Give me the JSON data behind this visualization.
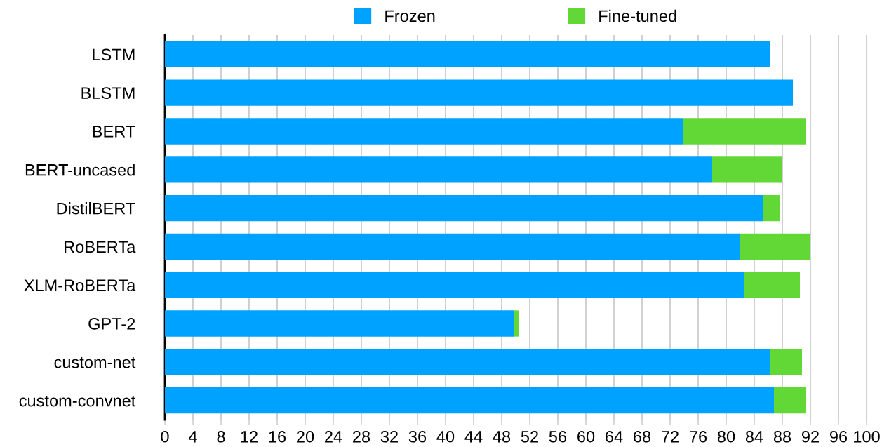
{
  "chart_data": {
    "type": "bar",
    "orientation": "horizontal",
    "stacked": true,
    "categories": [
      "LSTM",
      "BLSTM",
      "BERT",
      "BERT-uncased",
      "DistilBERT",
      "RoBERTa",
      "XLM-RoBERTa",
      "GPT-2",
      "custom-net",
      "custom-convnet"
    ],
    "series": [
      {
        "name": "Frozen",
        "color": "#00a2ff",
        "values": [
          86.2,
          89.5,
          73.8,
          78.0,
          85.2,
          82.0,
          82.6,
          49.8,
          86.3,
          86.8
        ]
      },
      {
        "name": "Fine-tuned",
        "color": "#61d836",
        "values": [
          null,
          null,
          17.5,
          9.9,
          2.4,
          9.9,
          7.9,
          0.7,
          4.5,
          4.6
        ]
      }
    ],
    "xlim": [
      0,
      100
    ],
    "xticks": [
      0,
      4,
      8,
      12,
      16,
      20,
      24,
      28,
      32,
      36,
      40,
      44,
      48,
      52,
      56,
      60,
      64,
      68,
      72,
      76,
      80,
      84,
      88,
      92,
      96,
      100
    ],
    "grid": "x",
    "legend": "top"
  }
}
